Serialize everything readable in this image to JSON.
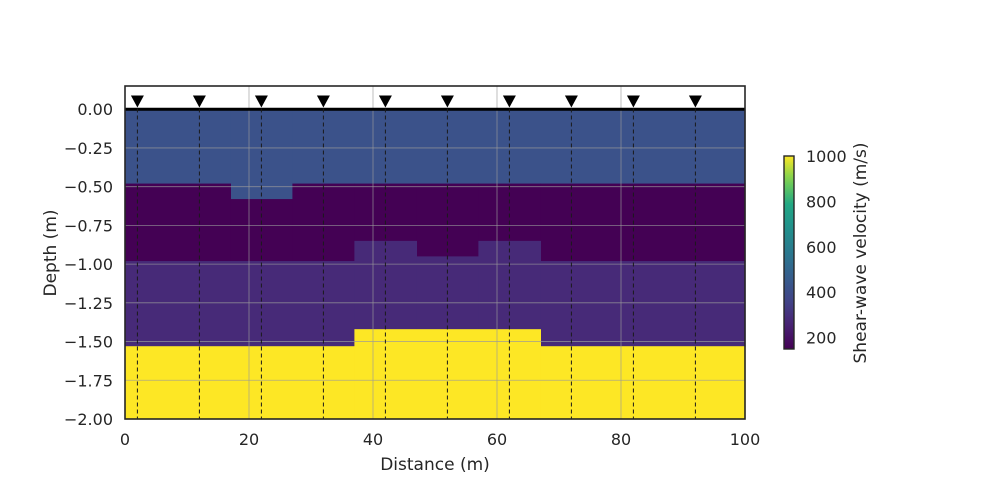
{
  "chart_data": {
    "type": "heatmap",
    "title": "",
    "xlabel": "Distance (m)",
    "ylabel": "Depth (m)",
    "xlim": [
      0,
      100
    ],
    "ylim": [
      -2.0,
      0.15
    ],
    "xticks": [
      0,
      20,
      40,
      60,
      80,
      100
    ],
    "xtick_labels": [
      "0",
      "20",
      "40",
      "60",
      "80",
      "100"
    ],
    "yticks": [
      0.0,
      -0.25,
      -0.5,
      -0.75,
      -1.0,
      -1.25,
      -1.5,
      -1.75,
      -2.0
    ],
    "ytick_labels": [
      "0.00",
      "−0.25",
      "−0.50",
      "−0.75",
      "−1.00",
      "−1.25",
      "−1.50",
      "−1.75",
      "−2.00"
    ],
    "grid": true,
    "colormap": "viridis",
    "colorbar": {
      "label": "Shear-wave velocity (m/s)",
      "range": [
        150,
        1000
      ],
      "ticks": [
        200,
        400,
        600,
        800,
        1000
      ],
      "tick_labels": [
        "200",
        "400",
        "600",
        "800",
        "1000"
      ]
    },
    "sensors": {
      "marker": "inverted-triangle",
      "depth": 0.05,
      "x": [
        2,
        12,
        22,
        32,
        42,
        52,
        62,
        72,
        82,
        92
      ]
    },
    "velocity_layers": [
      {
        "x_start": 0,
        "x_end": 17,
        "top": 0.0,
        "bottom": -0.48,
        "velocity": 420
      },
      {
        "x_start": 17,
        "x_end": 27,
        "top": 0.0,
        "bottom": -0.58,
        "velocity": 420
      },
      {
        "x_start": 27,
        "x_end": 100,
        "top": 0.0,
        "bottom": -0.48,
        "velocity": 420
      },
      {
        "x_start": 0,
        "x_end": 17,
        "top": -0.48,
        "bottom": -0.98,
        "velocity": 150
      },
      {
        "x_start": 17,
        "x_end": 27,
        "top": -0.58,
        "bottom": -0.98,
        "velocity": 150
      },
      {
        "x_start": 27,
        "x_end": 37,
        "top": -0.48,
        "bottom": -0.98,
        "velocity": 150
      },
      {
        "x_start": 37,
        "x_end": 42,
        "top": -0.48,
        "bottom": -0.85,
        "velocity": 150
      },
      {
        "x_start": 42,
        "x_end": 47,
        "top": -0.48,
        "bottom": -0.85,
        "velocity": 150
      },
      {
        "x_start": 47,
        "x_end": 57,
        "top": -0.48,
        "bottom": -0.95,
        "velocity": 150
      },
      {
        "x_start": 57,
        "x_end": 67,
        "top": -0.48,
        "bottom": -0.85,
        "velocity": 150
      },
      {
        "x_start": 67,
        "x_end": 100,
        "top": -0.48,
        "bottom": -0.98,
        "velocity": 150
      },
      {
        "x_start": 0,
        "x_end": 37,
        "top": -0.98,
        "bottom": -1.53,
        "velocity": 280
      },
      {
        "x_start": 37,
        "x_end": 42,
        "top": -0.85,
        "bottom": -1.42,
        "velocity": 280
      },
      {
        "x_start": 42,
        "x_end": 47,
        "top": -0.85,
        "bottom": -1.42,
        "velocity": 280
      },
      {
        "x_start": 47,
        "x_end": 57,
        "top": -0.95,
        "bottom": -1.42,
        "velocity": 280
      },
      {
        "x_start": 57,
        "x_end": 67,
        "top": -0.85,
        "bottom": -1.42,
        "velocity": 280
      },
      {
        "x_start": 67,
        "x_end": 100,
        "top": -0.98,
        "bottom": -1.53,
        "velocity": 280
      },
      {
        "x_start": 0,
        "x_end": 37,
        "top": -1.53,
        "bottom": -2.0,
        "velocity": 1000
      },
      {
        "x_start": 37,
        "x_end": 67,
        "top": -1.42,
        "bottom": -2.0,
        "velocity": 1000
      },
      {
        "x_start": 67,
        "x_end": 100,
        "top": -1.53,
        "bottom": -2.0,
        "velocity": 1000
      }
    ]
  }
}
